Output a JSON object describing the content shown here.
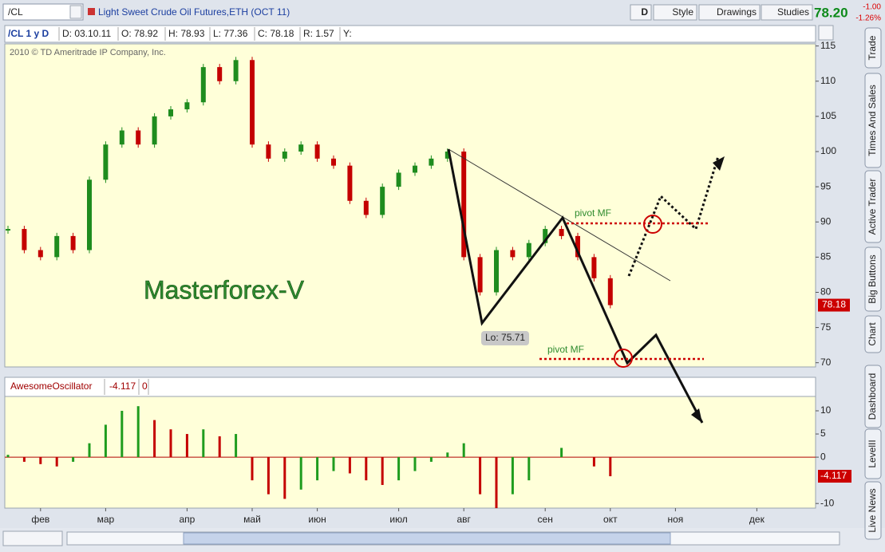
{
  "toolbar": {
    "symbol": "/CL",
    "description": "Light Sweet Crude Oil Futures,ETH (OCT 11)",
    "buttons": [
      "D",
      "Style",
      "Drawings",
      "Studies"
    ],
    "last": "78.20",
    "change": "-1.00",
    "change_pct": "-1.26%"
  },
  "info_bar": [
    "/CL 1 y D",
    "D: 03.10.11",
    "O: 78.92",
    "H: 78.93",
    "L: 77.36",
    "C: 78.18",
    "R: 1.57",
    "Y:"
  ],
  "side_tabs": [
    "Trade",
    "Times And Sales",
    "Active Trader",
    "Big Buttons",
    "Chart",
    "Dashboard",
    "LevelII",
    "Live News"
  ],
  "chart_data": [
    {
      "type": "candlestick",
      "copyright": "2010 © TD Ameritrade IP Company, Inc.",
      "watermark": "Masterforex-V",
      "annotations": [
        "Lo: 75.71",
        "pivot MF",
        "pivot MF"
      ],
      "last_price": 78.18,
      "up_color": "#1e8c1e",
      "down_color": "#c40000",
      "values": [
        89,
        86,
        85,
        88,
        86,
        96,
        101,
        103,
        101,
        105,
        106,
        107,
        112,
        110,
        113,
        101,
        99,
        100,
        101,
        99,
        98,
        93,
        91,
        95,
        97,
        98,
        99,
        100,
        85,
        80,
        86,
        85,
        87,
        89,
        88,
        85,
        82,
        78.18,
        null,
        null,
        null,
        null,
        null,
        null,
        null,
        null,
        null,
        null
      ],
      "ylim": [
        69.4,
        115.3
      ],
      "yticks": [
        70,
        75,
        80,
        85,
        90,
        95,
        100,
        105,
        110,
        115
      ]
    },
    {
      "type": "bar",
      "title": "AwesomeOscillator",
      "params": [
        "0"
      ],
      "up_color": "#1e9c1e",
      "down_color": "#c40000",
      "categories": [
        null,
        null,
        "фев",
        null,
        null,
        null,
        "мар",
        null,
        null,
        null,
        null,
        "апр",
        null,
        null,
        null,
        "май",
        null,
        null,
        null,
        "июн",
        null,
        null,
        null,
        null,
        "июл",
        null,
        null,
        null,
        "авг",
        null,
        null,
        null,
        null,
        "сен",
        null,
        null,
        null,
        "окт",
        null,
        null,
        null,
        "ноя",
        null,
        null,
        null,
        null,
        "дек",
        null
      ],
      "values": [
        0.5,
        -1,
        -1.5,
        -2,
        -1,
        3,
        7,
        10,
        11,
        8,
        6,
        5,
        6,
        4.5,
        5,
        -5,
        -8,
        -9,
        -7,
        -5,
        -3,
        -3.5,
        -5,
        -6,
        -5,
        -3,
        -1,
        1,
        3,
        -8,
        -11,
        -8,
        -5,
        0,
        2,
        0,
        -2,
        -4.117,
        null,
        null,
        null,
        null,
        null,
        null,
        null,
        null,
        null,
        null
      ],
      "ylim": [
        -11,
        13.1
      ],
      "yticks": [
        -10,
        0,
        5,
        10
      ]
    }
  ]
}
